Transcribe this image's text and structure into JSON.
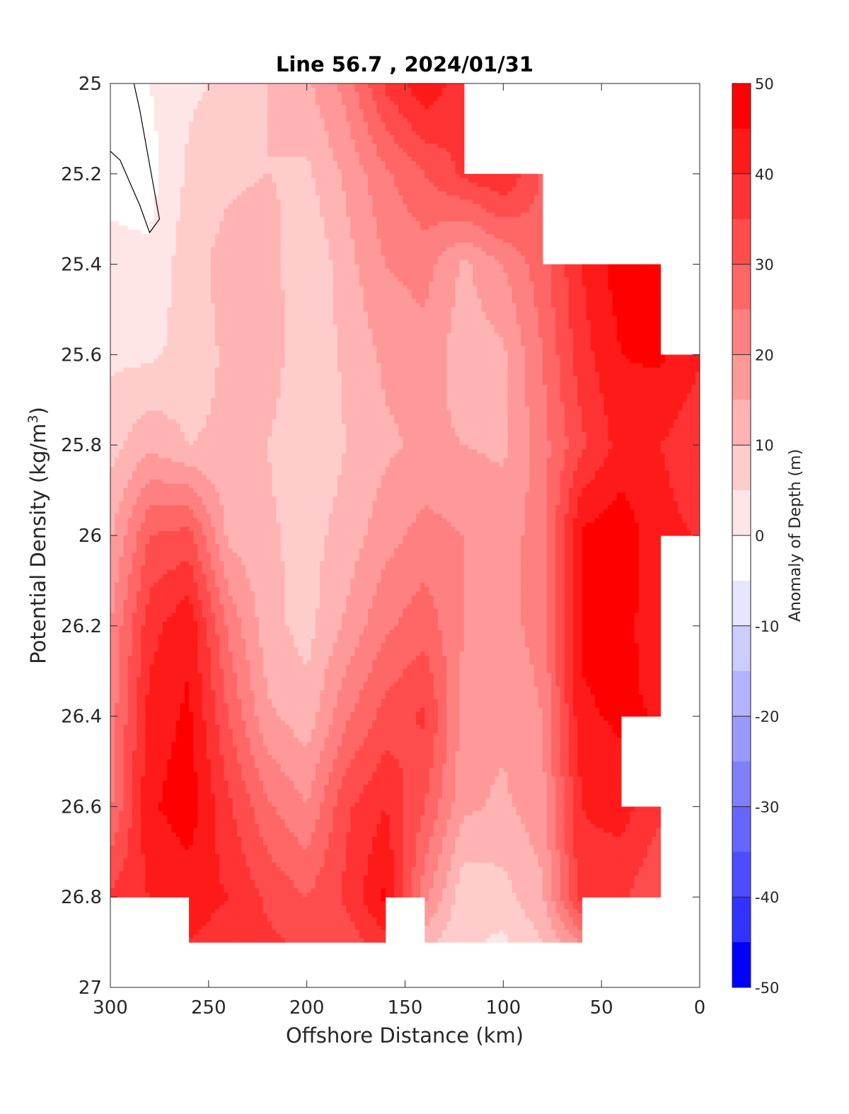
{
  "chart_data": {
    "type": "heatmap",
    "title": "Line 56.7 , 2024/01/31",
    "xlabel": "Offshore Distance (km)",
    "ylabel": "Potential Density (kg/m3)",
    "ylabel_parts": {
      "main": "Potential Density (kg/m",
      "sup": "3",
      "close": ")"
    },
    "xlim": [
      300,
      0
    ],
    "ylim": [
      25,
      27
    ],
    "x_reversed": true,
    "y_reversed": true,
    "xticks": [
      "300",
      "250",
      "200",
      "150",
      "100",
      "50",
      "0"
    ],
    "yticks": [
      "25",
      "25.2",
      "25.4",
      "25.6",
      "25.8",
      "26",
      "26.2",
      "26.4",
      "26.6",
      "26.8",
      "27"
    ],
    "colorbar": {
      "label": "Anomaly of Depth (m)",
      "range": [
        -50,
        50
      ],
      "tick_labels": [
        "50",
        "40",
        "30",
        "20",
        "10",
        "0",
        "-10",
        "-20",
        "-30",
        "-40",
        "-50"
      ],
      "levels": [
        {
          "min": 45,
          "max": 50,
          "color": "#ff0000"
        },
        {
          "min": 40,
          "max": 45,
          "color": "#ff1a1a"
        },
        {
          "min": 35,
          "max": 40,
          "color": "#ff3333"
        },
        {
          "min": 30,
          "max": 35,
          "color": "#ff4d4d"
        },
        {
          "min": 25,
          "max": 30,
          "color": "#ff6666"
        },
        {
          "min": 20,
          "max": 25,
          "color": "#ff8080"
        },
        {
          "min": 15,
          "max": 20,
          "color": "#ff9999"
        },
        {
          "min": 10,
          "max": 15,
          "color": "#ffb3b3"
        },
        {
          "min": 5,
          "max": 10,
          "color": "#ffcccc"
        },
        {
          "min": 0,
          "max": 5,
          "color": "#ffe6e6"
        },
        {
          "min": -5,
          "max": 0,
          "color": "#ffffff"
        },
        {
          "min": -10,
          "max": -5,
          "color": "#e6e6ff"
        },
        {
          "min": -15,
          "max": -10,
          "color": "#ccccff"
        },
        {
          "min": -20,
          "max": -15,
          "color": "#b3b3ff"
        },
        {
          "min": -25,
          "max": -20,
          "color": "#9999ff"
        },
        {
          "min": -30,
          "max": -25,
          "color": "#8080ff"
        },
        {
          "min": -35,
          "max": -30,
          "color": "#6666ff"
        },
        {
          "min": -40,
          "max": -35,
          "color": "#4d4dff"
        },
        {
          "min": -45,
          "max": -40,
          "color": "#3333ff"
        },
        {
          "min": -50,
          "max": -45,
          "color": "#0000ff"
        }
      ]
    },
    "anomaly_grid": {
      "x": [
        300,
        280,
        260,
        240,
        220,
        200,
        180,
        160,
        140,
        120,
        100,
        80,
        60,
        40,
        20,
        0
      ],
      "y": [
        25.0,
        25.2,
        25.4,
        25.6,
        25.8,
        26.0,
        26.2,
        26.4,
        26.6,
        26.8,
        26.9
      ],
      "z": [
        [
          0,
          0,
          4,
          6,
          10,
          14,
          22,
          36,
          44,
          null,
          null,
          null,
          null,
          null,
          null,
          null
        ],
        [
          -1,
          -2,
          6,
          9,
          10,
          9,
          16,
          24,
          30,
          36,
          40,
          null,
          null,
          null,
          null,
          null
        ],
        [
          1,
          1,
          8,
          12,
          13,
          5,
          13,
          20,
          22,
          14,
          20,
          28,
          40,
          48,
          50,
          null
        ],
        [
          4,
          4,
          7,
          11,
          13,
          6,
          11,
          16,
          18,
          12,
          14,
          25,
          38,
          45,
          46,
          null
        ],
        [
          8,
          14,
          10,
          11,
          10,
          6,
          10,
          14,
          16,
          15,
          14,
          23,
          34,
          42,
          40,
          36
        ],
        [
          14,
          30,
          32,
          14,
          11,
          8,
          12,
          18,
          22,
          20,
          18,
          22,
          46,
          48,
          42,
          null
        ],
        [
          20,
          38,
          44,
          24,
          12,
          8,
          16,
          24,
          28,
          20,
          18,
          22,
          46,
          48,
          40,
          null
        ],
        [
          22,
          42,
          46,
          30,
          16,
          12,
          24,
          32,
          36,
          18,
          16,
          20,
          44,
          46,
          null,
          null
        ],
        [
          24,
          44,
          48,
          36,
          26,
          20,
          34,
          40,
          30,
          16,
          14,
          18,
          40,
          42,
          null,
          null
        ],
        [
          null,
          40,
          42,
          40,
          34,
          30,
          36,
          46,
          22,
          6,
          8,
          14,
          38,
          36,
          30,
          null
        ],
        [
          null,
          null,
          null,
          38,
          36,
          34,
          32,
          null,
          null,
          6,
          4,
          10,
          null,
          null,
          null,
          null
        ]
      ]
    },
    "contour_zero_line": {
      "x": [
        300,
        295,
        290,
        285,
        280,
        275,
        280,
        285,
        288
      ],
      "y": [
        25.15,
        25.17,
        25.22,
        25.27,
        25.33,
        25.3,
        25.18,
        25.06,
        25.0
      ]
    },
    "grid": false
  }
}
